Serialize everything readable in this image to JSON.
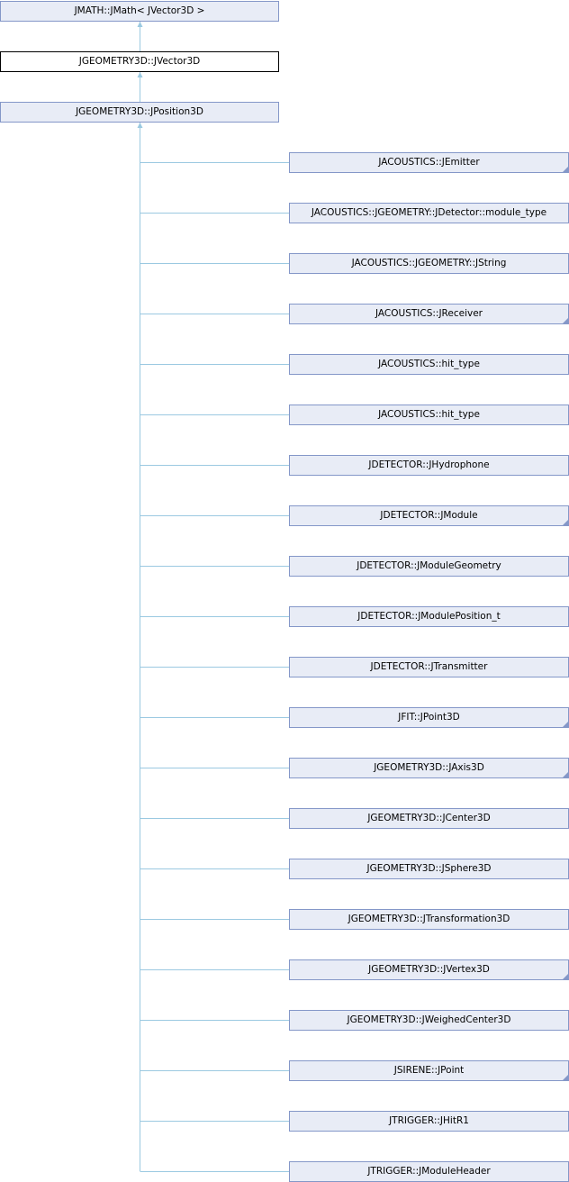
{
  "ancestors": [
    {
      "label": "JMATH::JMath< JVector3D >",
      "current": false
    },
    {
      "label": "JGEOMETRY3D::JVector3D",
      "current": true
    },
    {
      "label": "JGEOMETRY3D::JPosition3D",
      "current": false
    }
  ],
  "children": [
    {
      "label": "JACOUSTICS::JEmitter",
      "truncated": true
    },
    {
      "label": "JACOUSTICS::JGEOMETRY::JDetector::module_type",
      "truncated": false
    },
    {
      "label": "JACOUSTICS::JGEOMETRY::JString",
      "truncated": false
    },
    {
      "label": "JACOUSTICS::JReceiver",
      "truncated": true
    },
    {
      "label": "JACOUSTICS::hit_type",
      "truncated": false
    },
    {
      "label": "JACOUSTICS::hit_type",
      "truncated": false
    },
    {
      "label": "JDETECTOR::JHydrophone",
      "truncated": false
    },
    {
      "label": "JDETECTOR::JModule",
      "truncated": true
    },
    {
      "label": "JDETECTOR::JModuleGeometry",
      "truncated": false
    },
    {
      "label": "JDETECTOR::JModulePosition_t",
      "truncated": false
    },
    {
      "label": "JDETECTOR::JTransmitter",
      "truncated": false
    },
    {
      "label": "JFIT::JPoint3D",
      "truncated": true
    },
    {
      "label": "JGEOMETRY3D::JAxis3D",
      "truncated": true
    },
    {
      "label": "JGEOMETRY3D::JCenter3D",
      "truncated": false
    },
    {
      "label": "JGEOMETRY3D::JSphere3D",
      "truncated": false
    },
    {
      "label": "JGEOMETRY3D::JTransformation3D",
      "truncated": false
    },
    {
      "label": "JGEOMETRY3D::JVertex3D",
      "truncated": true
    },
    {
      "label": "JGEOMETRY3D::JWeighedCenter3D",
      "truncated": false
    },
    {
      "label": "JSIRENE::JPoint",
      "truncated": true
    },
    {
      "label": "JTRIGGER::JHitR1",
      "truncated": false
    },
    {
      "label": "JTRIGGER::JModuleHeader",
      "truncated": false
    }
  ],
  "colors": {
    "node_fill": "#e8ecf6",
    "node_border": "#8497c8",
    "edge": "#9bc9e1"
  }
}
